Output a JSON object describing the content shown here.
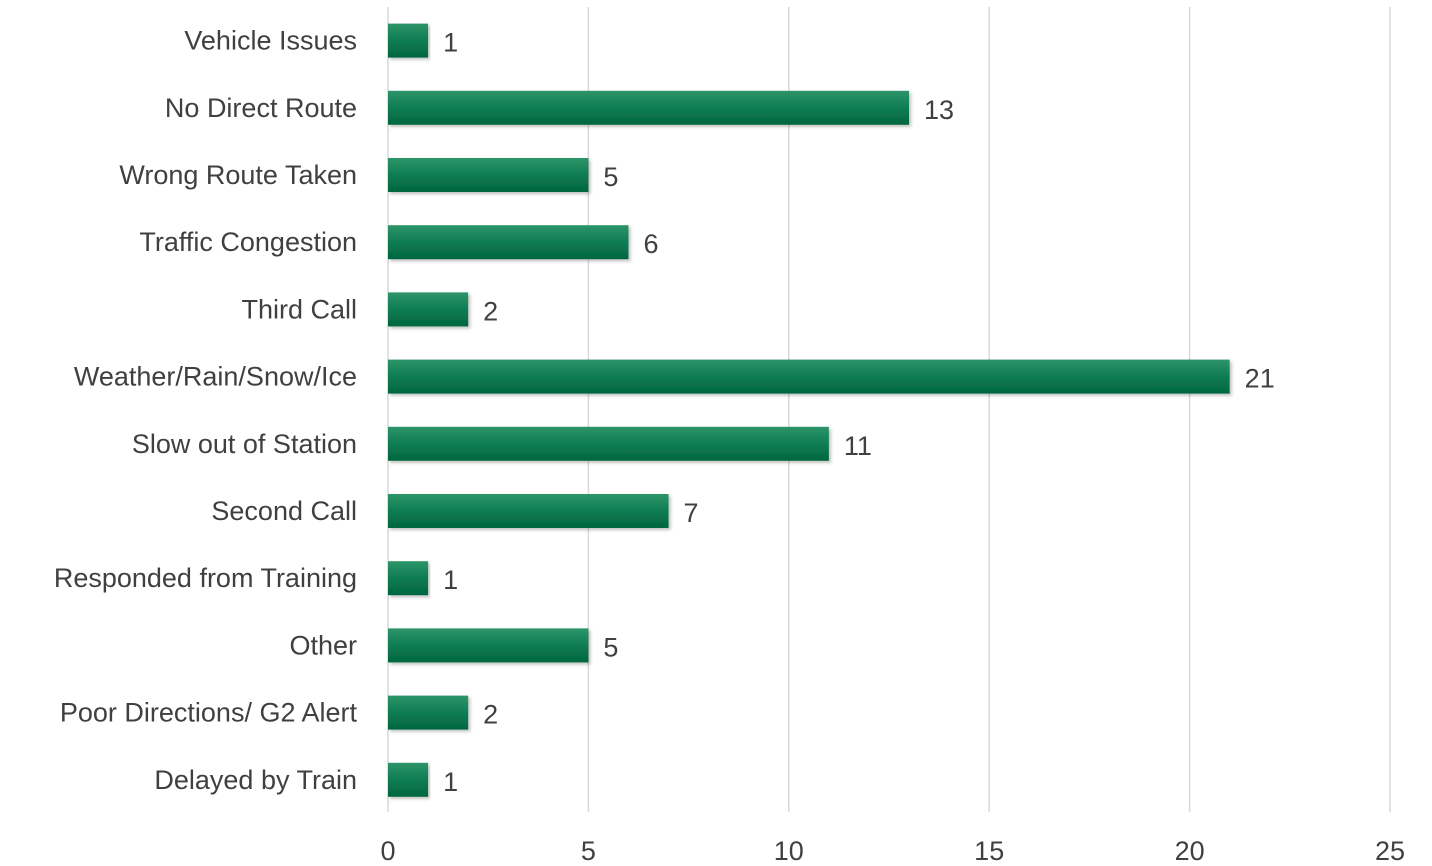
{
  "chart_data": {
    "type": "bar",
    "orientation": "horizontal",
    "title": "",
    "xlabel": "",
    "ylabel": "",
    "categories": [
      "Vehicle Issues",
      "No Direct Route",
      "Wrong Route Taken",
      "Traffic Congestion",
      "Third Call",
      "Weather/Rain/Snow/Ice",
      "Slow out of Station",
      "Second Call",
      "Responded from Training",
      "Other",
      "Poor Directions/ G2 Alert",
      "Delayed by Train"
    ],
    "values": [
      1,
      13,
      5,
      6,
      2,
      21,
      11,
      7,
      1,
      5,
      2,
      1
    ],
    "xlim": [
      0,
      25
    ],
    "x_ticks": [
      0,
      5,
      10,
      15,
      20,
      25
    ],
    "grid": "vertical",
    "legend": "none",
    "data_labels": true,
    "bar_color": "#0b7a52",
    "bar_color_dark": "#03663f",
    "bar_color_light": "#2e9469",
    "text_color": "#404040",
    "grid_color": "#d9d9d9"
  }
}
